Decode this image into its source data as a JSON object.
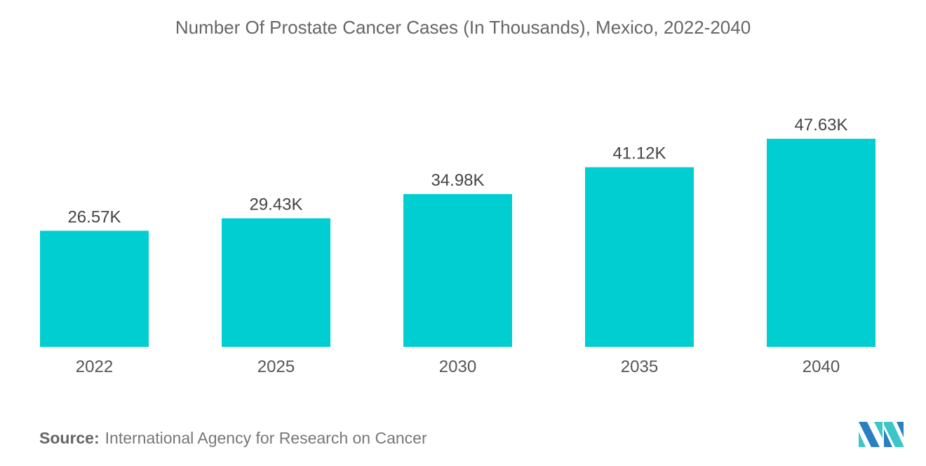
{
  "chart_data": {
    "type": "bar",
    "title": "Number Of Prostate Cancer Cases (In Thousands), Mexico, 2022-2040",
    "categories": [
      "2022",
      "2025",
      "2030",
      "2035",
      "2040"
    ],
    "values": [
      26.57,
      29.43,
      34.98,
      41.12,
      47.63
    ],
    "data_labels": [
      "26.57K",
      "29.43K",
      "34.98K",
      "41.12K",
      "47.63K"
    ],
    "xlabel": "",
    "ylabel": "",
    "ylim": [
      0,
      53
    ],
    "grid": false,
    "bar_color": "#00CED1"
  },
  "source": {
    "label": "Source:",
    "text": "International Agency for Research on Cancer"
  },
  "logo": {
    "colors": [
      "#2A7FC1",
      "#3CC6C8"
    ]
  }
}
